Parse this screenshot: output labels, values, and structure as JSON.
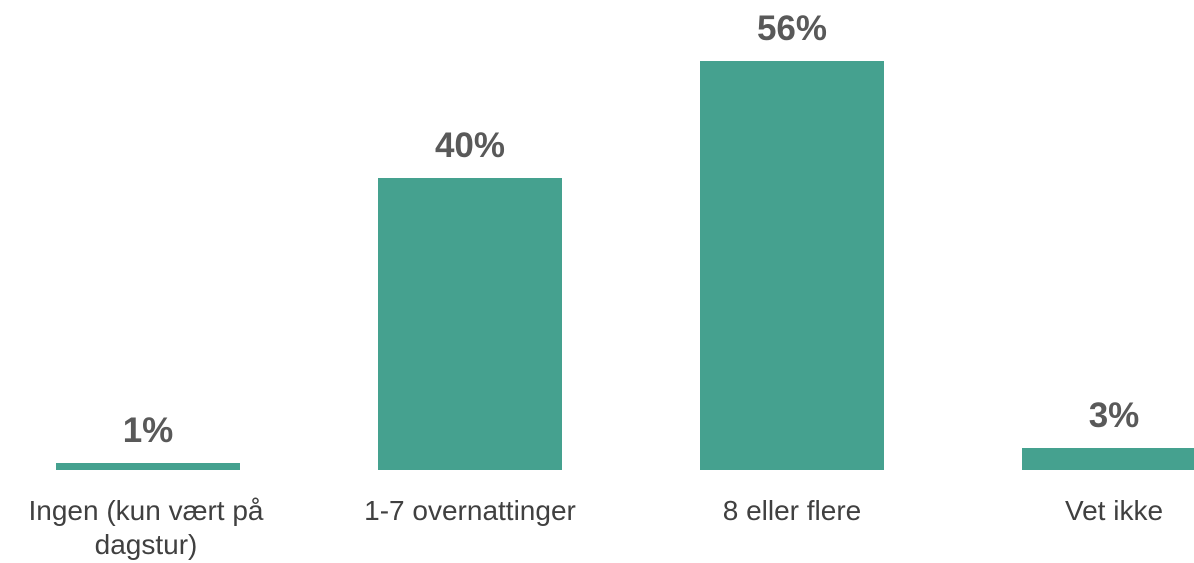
{
  "chart_data": {
    "type": "bar",
    "categories": [
      "Ingen (kun vært på dagstur)",
      "1-7 overnattinger",
      "8 eller flere",
      "Vet ikke"
    ],
    "values": [
      1,
      40,
      56,
      3
    ],
    "data_labels": [
      "1%",
      "40%",
      "56%",
      "3%"
    ],
    "title": "",
    "xlabel": "",
    "ylabel": "",
    "ylim": [
      0,
      56
    ],
    "grid": false,
    "bar_color": "#45a18f"
  }
}
